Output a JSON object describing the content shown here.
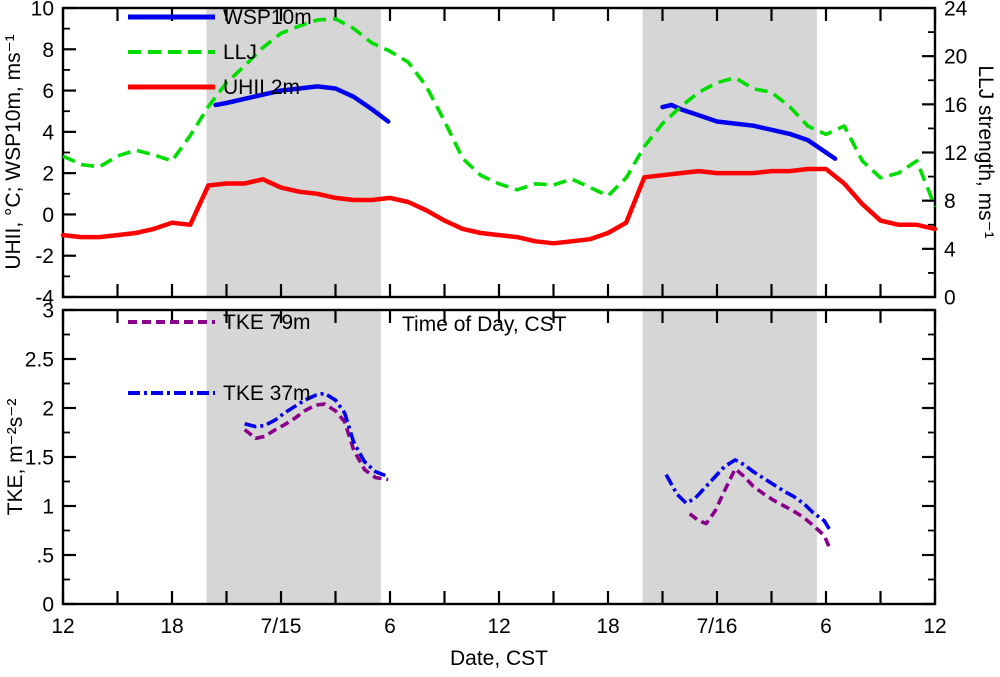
{
  "style": {
    "band_color": "#d6d6d6",
    "frame_color": "#000000",
    "background": "#ffffff"
  },
  "chart_data": [
    {
      "type": "line",
      "panel": "top",
      "xlabel": "Time of Day, CST",
      "ylabel_left": "UHII, °C; WSP10m, ms⁻¹",
      "ylabel_right": "LLJ strength, ms⁻¹",
      "xlim": [
        0,
        48
      ],
      "x_tick_step": 3,
      "ylim_left": [
        -4,
        10
      ],
      "ylim_right": [
        0,
        24
      ],
      "y_left_minor": 1,
      "y_right_minor": 2,
      "y_left_labels": [
        {
          "v": 10,
          "t": "10"
        },
        {
          "v": 8,
          "t": "8"
        },
        {
          "v": 6,
          "t": "6"
        },
        {
          "v": 4,
          "t": "4"
        },
        {
          "v": 2,
          "t": "2"
        },
        {
          "v": 0,
          "t": "0"
        },
        {
          "v": -2,
          "t": "-2"
        },
        {
          "v": -4,
          "t": "-4"
        }
      ],
      "y_right_labels": [
        {
          "v": 24,
          "t": "24"
        },
        {
          "v": 20,
          "t": "20"
        },
        {
          "v": 16,
          "t": "16"
        },
        {
          "v": 12,
          "t": "12"
        },
        {
          "v": 8,
          "t": "8"
        },
        {
          "v": 4,
          "t": "4"
        },
        {
          "v": 0,
          "t": "0"
        }
      ],
      "shaded_bands_x": [
        [
          7.9,
          17.5
        ],
        [
          31.9,
          41.5
        ]
      ],
      "series": [
        {
          "name": "WSP10m",
          "axis": "left",
          "color": "#0000ee",
          "style": "solid",
          "width": 4.5,
          "segments": [
            {
              "x": [
                8.4,
                9,
                10,
                11,
                12,
                13,
                14,
                15,
                16,
                17,
                17.9
              ],
              "y": [
                5.3,
                5.4,
                5.6,
                5.8,
                6.0,
                6.1,
                6.2,
                6.1,
                5.7,
                5.1,
                4.5
              ]
            },
            {
              "x": [
                33,
                33.5,
                34,
                35,
                36,
                37,
                38,
                39,
                40,
                41,
                42,
                42.5
              ],
              "y": [
                5.2,
                5.3,
                5.1,
                4.8,
                4.5,
                4.4,
                4.3,
                4.1,
                3.9,
                3.6,
                3.0,
                2.7
              ]
            }
          ]
        },
        {
          "name": "LLJ",
          "axis": "right",
          "color": "#00dd00",
          "style": "dashed",
          "width": 3.6,
          "segments": [
            {
              "x": [
                0,
                1,
                2,
                3,
                4,
                5,
                6,
                7,
                8,
                9,
                10,
                11,
                12,
                13,
                14,
                15,
                16,
                17,
                18,
                19,
                20,
                21,
                22,
                23,
                24,
                25,
                26,
                27,
                28,
                29,
                30,
                31,
                32,
                33,
                34,
                35,
                36,
                37,
                38,
                39,
                40,
                41,
                42,
                43,
                44,
                45,
                46,
                47,
                48
              ],
              "y": [
                11.7,
                11.0,
                10.8,
                11.7,
                12.2,
                11.8,
                11.3,
                13.4,
                15.8,
                17.8,
                19.2,
                20.7,
                21.9,
                22.5,
                23.0,
                23.1,
                22.3,
                21.1,
                20.4,
                19.5,
                17.5,
                14.6,
                11.5,
                10.1,
                9.4,
                8.9,
                9.4,
                9.3,
                9.8,
                9.1,
                8.4,
                9.9,
                12.5,
                14.4,
                15.8,
                17.0,
                17.8,
                18.2,
                17.3,
                17.0,
                15.8,
                14.2,
                13.5,
                14.2,
                11.3,
                9.9,
                10.3,
                11.3,
                7.5
              ]
            }
          ]
        },
        {
          "name": "UHII 2m",
          "axis": "left",
          "color": "#ff0000",
          "style": "solid",
          "width": 4.5,
          "segments": [
            {
              "x": [
                0,
                1,
                2,
                3,
                4,
                5,
                6,
                7,
                8,
                9,
                10,
                11,
                12,
                13,
                14,
                15,
                16,
                17,
                18,
                19,
                20,
                21,
                22,
                23,
                24,
                25,
                26,
                27,
                28,
                29,
                30,
                31,
                32,
                33,
                34,
                35,
                36,
                37,
                38,
                39,
                40,
                41,
                42,
                43,
                44,
                45,
                46,
                47,
                48
              ],
              "y": [
                -1.0,
                -1.1,
                -1.1,
                -1.0,
                -0.9,
                -0.7,
                -0.4,
                -0.5,
                1.4,
                1.5,
                1.5,
                1.7,
                1.3,
                1.1,
                1.0,
                0.8,
                0.7,
                0.7,
                0.8,
                0.6,
                0.2,
                -0.3,
                -0.7,
                -0.9,
                -1.0,
                -1.1,
                -1.3,
                -1.4,
                -1.3,
                -1.2,
                -0.9,
                -0.4,
                1.8,
                1.9,
                2.0,
                2.1,
                2.0,
                2.0,
                2.0,
                2.1,
                2.1,
                2.2,
                2.2,
                1.5,
                0.5,
                -0.3,
                -0.5,
                -0.5,
                -0.7
              ]
            }
          ]
        }
      ]
    },
    {
      "type": "line",
      "panel": "bottom",
      "xlabel": "Date, CST",
      "ylabel_left": "TKE, m⁻²s⁻²",
      "xlim": [
        0,
        48
      ],
      "x_tick_step": 3,
      "ylim_left": [
        0,
        3
      ],
      "y_left_minor": 0.25,
      "y_left_labels": [
        {
          "v": 3,
          "t": "3"
        },
        {
          "v": 2.5,
          "t": "2.5"
        },
        {
          "v": 2,
          "t": "2"
        },
        {
          "v": 1.5,
          "t": "1.5"
        },
        {
          "v": 1,
          "t": "1"
        },
        {
          "v": 0.5,
          "t": ".5"
        },
        {
          "v": 0,
          "t": "0"
        }
      ],
      "x_labels": [
        {
          "v": 0,
          "t": "12"
        },
        {
          "v": 6,
          "t": "18"
        },
        {
          "v": 12,
          "t": "7/15"
        },
        {
          "v": 18,
          "t": "6"
        },
        {
          "v": 24,
          "t": "12"
        },
        {
          "v": 30,
          "t": "18"
        },
        {
          "v": 36,
          "t": "7/16"
        },
        {
          "v": 42,
          "t": "6"
        },
        {
          "v": 48,
          "t": "12"
        }
      ],
      "shaded_bands_x": [
        [
          7.9,
          17.5
        ],
        [
          31.9,
          41.5
        ]
      ],
      "series": [
        {
          "name": "TKE 79m",
          "axis": "left",
          "color": "#8b008b",
          "style": "dashed_short",
          "width": 3.6,
          "segments": [
            {
              "x": [
                10,
                10.6,
                11.1,
                11.7,
                12.2,
                12.8,
                13.3,
                13.9,
                14.4,
                15,
                15.5,
                16,
                16.6,
                17.2,
                17.9
              ],
              "y": [
                1.78,
                1.69,
                1.71,
                1.78,
                1.83,
                1.9,
                1.97,
                2.03,
                2.04,
                1.97,
                1.86,
                1.57,
                1.37,
                1.29,
                1.27
              ]
            },
            {
              "x": [
                34.5,
                35,
                35.4,
                35.9,
                36.4,
                37,
                37.5,
                38,
                38.6,
                39.1,
                39.7,
                40.2,
                40.8,
                41.3,
                41.9,
                42.2
              ],
              "y": [
                0.92,
                0.85,
                0.82,
                0.95,
                1.15,
                1.38,
                1.3,
                1.2,
                1.12,
                1.06,
                1.0,
                0.95,
                0.88,
                0.8,
                0.7,
                0.57
              ]
            }
          ]
        },
        {
          "name": "TKE 37m",
          "axis": "left",
          "color": "#0000ee",
          "style": "dashdot",
          "width": 3.6,
          "segments": [
            {
              "x": [
                10,
                10.6,
                11.1,
                11.7,
                12.2,
                12.8,
                13.3,
                13.9,
                14.4,
                15,
                15.5,
                16,
                16.6,
                17.2,
                17.9
              ],
              "y": [
                1.84,
                1.81,
                1.82,
                1.88,
                1.95,
                2.02,
                2.08,
                2.13,
                2.15,
                2.08,
                1.95,
                1.65,
                1.45,
                1.35,
                1.3
              ]
            },
            {
              "x": [
                33.2,
                33.8,
                34.3,
                34.8,
                35.3,
                35.9,
                36.4,
                37,
                37.5,
                38,
                38.6,
                39.1,
                39.7,
                40.2,
                40.8,
                41.3,
                41.9,
                42.2
              ],
              "y": [
                1.32,
                1.12,
                1.03,
                1.08,
                1.18,
                1.3,
                1.4,
                1.47,
                1.42,
                1.35,
                1.28,
                1.22,
                1.15,
                1.1,
                1.02,
                0.93,
                0.85,
                0.76
              ]
            }
          ]
        }
      ]
    }
  ]
}
